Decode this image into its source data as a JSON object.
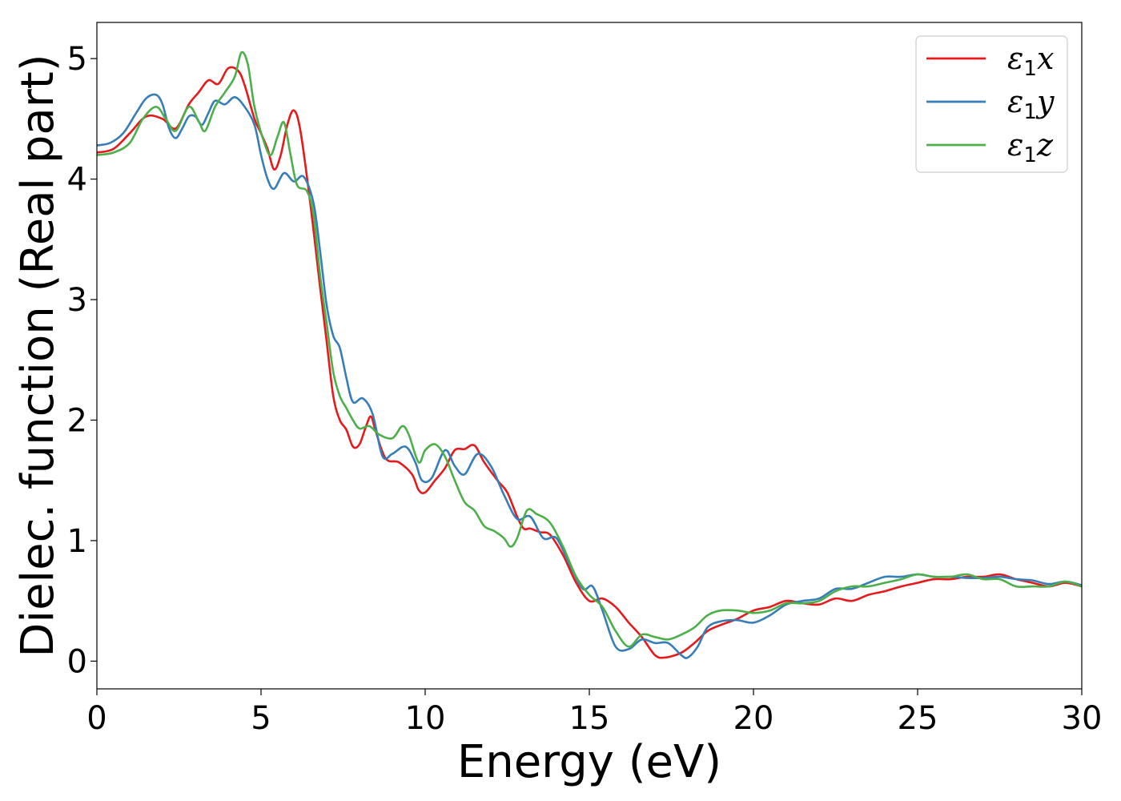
{
  "chart_data": {
    "type": "line",
    "title": "",
    "xlabel": "Energy (eV)",
    "ylabel": "Dielec. function (Real part)",
    "xlim": [
      0,
      30
    ],
    "ylim": [
      -0.23,
      5.3
    ],
    "xticks": [
      0,
      5,
      10,
      15,
      20,
      25,
      30
    ],
    "yticks": [
      0,
      1,
      2,
      3,
      4,
      5
    ],
    "grid": false,
    "legend_position": "top-right",
    "series": [
      {
        "name": "ε₁x",
        "legend_base": "ε",
        "legend_sub": "1",
        "legend_suffix": "x",
        "color": "#e41a1c",
        "points": [
          [
            0,
            4.22
          ],
          [
            0.5,
            4.25
          ],
          [
            1,
            4.38
          ],
          [
            1.5,
            4.52
          ],
          [
            2,
            4.5
          ],
          [
            2.4,
            4.42
          ],
          [
            2.8,
            4.62
          ],
          [
            3.1,
            4.72
          ],
          [
            3.4,
            4.82
          ],
          [
            3.7,
            4.79
          ],
          [
            4,
            4.92
          ],
          [
            4.3,
            4.9
          ],
          [
            4.5,
            4.78
          ],
          [
            4.8,
            4.5
          ],
          [
            5,
            4.38
          ],
          [
            5.2,
            4.25
          ],
          [
            5.4,
            4.08
          ],
          [
            5.6,
            4.2
          ],
          [
            5.8,
            4.45
          ],
          [
            6,
            4.57
          ],
          [
            6.2,
            4.4
          ],
          [
            6.5,
            3.8
          ],
          [
            6.8,
            3.1
          ],
          [
            7,
            2.65
          ],
          [
            7.2,
            2.2
          ],
          [
            7.4,
            2.0
          ],
          [
            7.6,
            1.92
          ],
          [
            7.8,
            1.78
          ],
          [
            8,
            1.8
          ],
          [
            8.2,
            1.95
          ],
          [
            8.35,
            2.03
          ],
          [
            8.5,
            1.9
          ],
          [
            8.8,
            1.68
          ],
          [
            9.2,
            1.65
          ],
          [
            9.6,
            1.55
          ],
          [
            9.8,
            1.42
          ],
          [
            10,
            1.4
          ],
          [
            10.3,
            1.5
          ],
          [
            10.6,
            1.6
          ],
          [
            10.9,
            1.75
          ],
          [
            11.2,
            1.76
          ],
          [
            11.5,
            1.79
          ],
          [
            11.8,
            1.65
          ],
          [
            12.2,
            1.5
          ],
          [
            12.5,
            1.4
          ],
          [
            12.8,
            1.2
          ],
          [
            13,
            1.1
          ],
          [
            13.2,
            1.1
          ],
          [
            13.5,
            1.07
          ],
          [
            13.8,
            1.05
          ],
          [
            14.2,
            0.88
          ],
          [
            14.6,
            0.65
          ],
          [
            15,
            0.5
          ],
          [
            15.4,
            0.52
          ],
          [
            15.8,
            0.45
          ],
          [
            16.2,
            0.32
          ],
          [
            16.6,
            0.2
          ],
          [
            17,
            0.05
          ],
          [
            17.3,
            0.03
          ],
          [
            17.8,
            0.07
          ],
          [
            18.2,
            0.15
          ],
          [
            18.6,
            0.25
          ],
          [
            19,
            0.3
          ],
          [
            19.5,
            0.35
          ],
          [
            20,
            0.42
          ],
          [
            20.5,
            0.45
          ],
          [
            21,
            0.5
          ],
          [
            21.5,
            0.48
          ],
          [
            22,
            0.47
          ],
          [
            22.5,
            0.52
          ],
          [
            23,
            0.5
          ],
          [
            23.5,
            0.55
          ],
          [
            24,
            0.58
          ],
          [
            24.5,
            0.62
          ],
          [
            25,
            0.65
          ],
          [
            25.5,
            0.68
          ],
          [
            26,
            0.68
          ],
          [
            26.5,
            0.7
          ],
          [
            27,
            0.7
          ],
          [
            27.5,
            0.72
          ],
          [
            28,
            0.68
          ],
          [
            28.5,
            0.65
          ],
          [
            29,
            0.62
          ],
          [
            29.5,
            0.65
          ],
          [
            30,
            0.62
          ]
        ]
      },
      {
        "name": "ε₁y",
        "legend_base": "ε",
        "legend_sub": "1",
        "legend_suffix": "y",
        "color": "#377eb8",
        "points": [
          [
            0,
            4.28
          ],
          [
            0.4,
            4.3
          ],
          [
            0.8,
            4.38
          ],
          [
            1.2,
            4.55
          ],
          [
            1.5,
            4.67
          ],
          [
            1.8,
            4.7
          ],
          [
            2,
            4.62
          ],
          [
            2.2,
            4.42
          ],
          [
            2.4,
            4.34
          ],
          [
            2.6,
            4.42
          ],
          [
            2.8,
            4.52
          ],
          [
            3,
            4.52
          ],
          [
            3.2,
            4.45
          ],
          [
            3.4,
            4.55
          ],
          [
            3.6,
            4.65
          ],
          [
            3.9,
            4.62
          ],
          [
            4.2,
            4.68
          ],
          [
            4.5,
            4.6
          ],
          [
            4.8,
            4.45
          ],
          [
            5,
            4.2
          ],
          [
            5.2,
            4.0
          ],
          [
            5.4,
            3.92
          ],
          [
            5.7,
            4.05
          ],
          [
            6,
            3.98
          ],
          [
            6.3,
            4.02
          ],
          [
            6.6,
            3.8
          ],
          [
            6.8,
            3.4
          ],
          [
            7,
            2.95
          ],
          [
            7.2,
            2.7
          ],
          [
            7.4,
            2.6
          ],
          [
            7.6,
            2.35
          ],
          [
            7.8,
            2.15
          ],
          [
            8.1,
            2.18
          ],
          [
            8.4,
            2.05
          ],
          [
            8.7,
            1.7
          ],
          [
            9,
            1.72
          ],
          [
            9.4,
            1.78
          ],
          [
            9.7,
            1.65
          ],
          [
            9.9,
            1.5
          ],
          [
            10.2,
            1.52
          ],
          [
            10.6,
            1.75
          ],
          [
            10.9,
            1.62
          ],
          [
            11.2,
            1.55
          ],
          [
            11.6,
            1.72
          ],
          [
            12,
            1.62
          ],
          [
            12.4,
            1.38
          ],
          [
            12.8,
            1.18
          ],
          [
            13.2,
            1.2
          ],
          [
            13.6,
            1.02
          ],
          [
            14,
            1.02
          ],
          [
            14.4,
            0.8
          ],
          [
            14.8,
            0.6
          ],
          [
            15.1,
            0.62
          ],
          [
            15.4,
            0.42
          ],
          [
            15.8,
            0.12
          ],
          [
            16.2,
            0.1
          ],
          [
            16.6,
            0.18
          ],
          [
            17,
            0.15
          ],
          [
            17.4,
            0.15
          ],
          [
            17.8,
            0.05
          ],
          [
            18,
            0.03
          ],
          [
            18.3,
            0.12
          ],
          [
            18.6,
            0.28
          ],
          [
            19,
            0.33
          ],
          [
            19.5,
            0.34
          ],
          [
            20,
            0.32
          ],
          [
            20.5,
            0.38
          ],
          [
            21,
            0.47
          ],
          [
            21.5,
            0.5
          ],
          [
            22,
            0.52
          ],
          [
            22.5,
            0.6
          ],
          [
            23,
            0.6
          ],
          [
            23.5,
            0.65
          ],
          [
            24,
            0.7
          ],
          [
            24.5,
            0.7
          ],
          [
            25,
            0.72
          ],
          [
            25.5,
            0.7
          ],
          [
            26,
            0.7
          ],
          [
            26.5,
            0.69
          ],
          [
            27,
            0.69
          ],
          [
            27.5,
            0.7
          ],
          [
            28,
            0.68
          ],
          [
            28.5,
            0.67
          ],
          [
            29,
            0.64
          ],
          [
            29.5,
            0.66
          ],
          [
            30,
            0.63
          ]
        ]
      },
      {
        "name": "ε₁z",
        "legend_base": "ε",
        "legend_sub": "1",
        "legend_suffix": "z",
        "color": "#4daf4a",
        "points": [
          [
            0,
            4.2
          ],
          [
            0.5,
            4.22
          ],
          [
            1,
            4.3
          ],
          [
            1.4,
            4.5
          ],
          [
            1.8,
            4.6
          ],
          [
            2.1,
            4.5
          ],
          [
            2.4,
            4.4
          ],
          [
            2.8,
            4.6
          ],
          [
            3.1,
            4.48
          ],
          [
            3.3,
            4.4
          ],
          [
            3.6,
            4.6
          ],
          [
            3.9,
            4.72
          ],
          [
            4.2,
            4.85
          ],
          [
            4.4,
            5.05
          ],
          [
            4.6,
            4.95
          ],
          [
            4.8,
            4.6
          ],
          [
            5.1,
            4.3
          ],
          [
            5.3,
            4.2
          ],
          [
            5.5,
            4.35
          ],
          [
            5.7,
            4.47
          ],
          [
            5.9,
            4.2
          ],
          [
            6.1,
            3.95
          ],
          [
            6.4,
            3.9
          ],
          [
            6.6,
            3.7
          ],
          [
            6.8,
            3.2
          ],
          [
            7,
            2.8
          ],
          [
            7.2,
            2.4
          ],
          [
            7.4,
            2.2
          ],
          [
            7.6,
            2.1
          ],
          [
            7.8,
            2.0
          ],
          [
            8,
            1.93
          ],
          [
            8.3,
            1.95
          ],
          [
            8.6,
            1.88
          ],
          [
            9,
            1.85
          ],
          [
            9.3,
            1.95
          ],
          [
            9.5,
            1.88
          ],
          [
            9.8,
            1.65
          ],
          [
            10,
            1.75
          ],
          [
            10.3,
            1.8
          ],
          [
            10.6,
            1.7
          ],
          [
            10.9,
            1.5
          ],
          [
            11.2,
            1.32
          ],
          [
            11.5,
            1.25
          ],
          [
            11.8,
            1.12
          ],
          [
            12.1,
            1.08
          ],
          [
            12.4,
            1.02
          ],
          [
            12.6,
            0.95
          ],
          [
            12.8,
            1.02
          ],
          [
            13.1,
            1.25
          ],
          [
            13.4,
            1.22
          ],
          [
            13.8,
            1.15
          ],
          [
            14.2,
            0.95
          ],
          [
            14.6,
            0.7
          ],
          [
            15,
            0.55
          ],
          [
            15.4,
            0.45
          ],
          [
            15.8,
            0.25
          ],
          [
            16.2,
            0.12
          ],
          [
            16.6,
            0.22
          ],
          [
            17,
            0.2
          ],
          [
            17.4,
            0.18
          ],
          [
            17.8,
            0.22
          ],
          [
            18.2,
            0.28
          ],
          [
            18.6,
            0.38
          ],
          [
            19,
            0.42
          ],
          [
            19.5,
            0.42
          ],
          [
            20,
            0.4
          ],
          [
            20.5,
            0.42
          ],
          [
            21,
            0.48
          ],
          [
            21.5,
            0.48
          ],
          [
            22,
            0.5
          ],
          [
            22.5,
            0.58
          ],
          [
            23,
            0.62
          ],
          [
            23.5,
            0.62
          ],
          [
            24,
            0.65
          ],
          [
            24.5,
            0.68
          ],
          [
            25,
            0.72
          ],
          [
            25.5,
            0.7
          ],
          [
            26,
            0.7
          ],
          [
            26.5,
            0.72
          ],
          [
            27,
            0.68
          ],
          [
            27.5,
            0.68
          ],
          [
            28,
            0.62
          ],
          [
            28.5,
            0.62
          ],
          [
            29,
            0.62
          ],
          [
            29.5,
            0.66
          ],
          [
            30,
            0.62
          ]
        ]
      }
    ]
  }
}
